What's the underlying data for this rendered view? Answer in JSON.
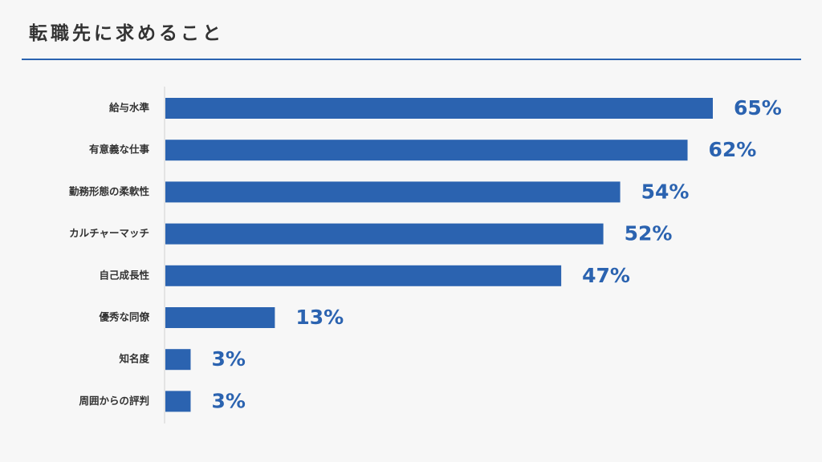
{
  "title": "転職先に求めること",
  "accent_color": "#2b63b0",
  "chart_data": {
    "type": "bar",
    "orientation": "horizontal",
    "categories": [
      "給与水準",
      "有意義な仕事",
      "勤務形態の柔軟性",
      "カルチャーマッチ",
      "自己成長性",
      "優秀な同僚",
      "知名度",
      "周囲からの評判"
    ],
    "values": [
      65,
      62,
      54,
      52,
      47,
      13,
      3,
      3
    ],
    "value_labels": [
      "65%",
      "62%",
      "54%",
      "52%",
      "47%",
      "13%",
      "3%",
      "3%"
    ],
    "unit": "%",
    "xlim": [
      0,
      100
    ],
    "grid": false,
    "legend": "none",
    "bar_color": "#2b63b0"
  }
}
